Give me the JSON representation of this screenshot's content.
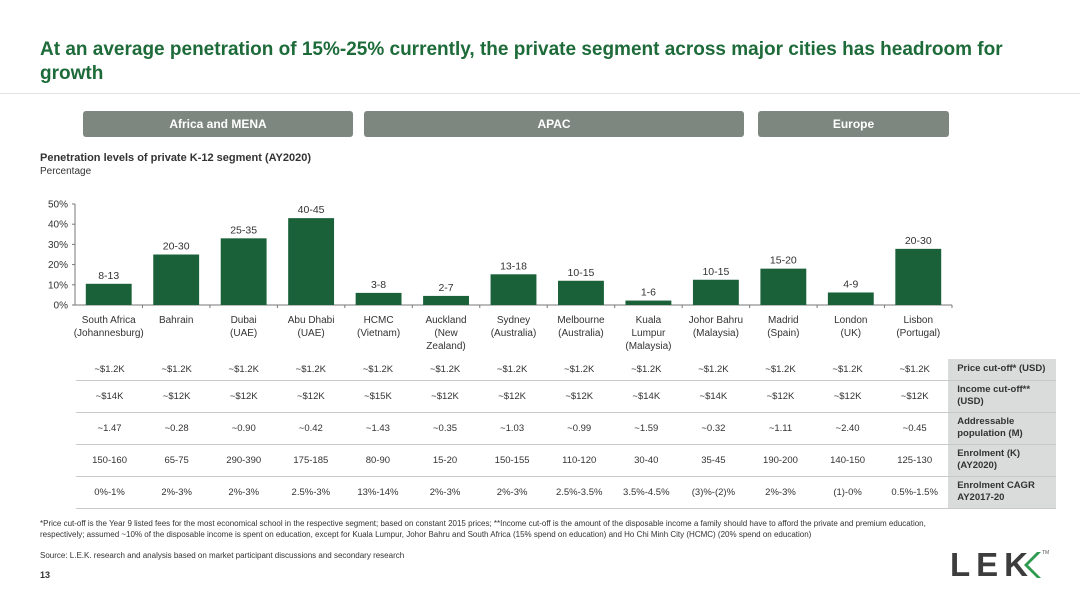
{
  "title": "At an average penetration of 15%-25% currently, the private segment across major cities has headroom for growth",
  "regions": [
    "Africa and MENA",
    "APAC",
    "Europe"
  ],
  "chart_header": {
    "title": "Penetration levels of private K-12 segment (AY2020)",
    "subtitle": "Percentage"
  },
  "chart_data": {
    "type": "bar",
    "title": "Penetration levels of private K-12 segment (AY2020)",
    "ylabel": "Percentage",
    "ylim": [
      0,
      50
    ],
    "yticks": [
      "0%",
      "10%",
      "20%",
      "30%",
      "40%",
      "50%"
    ],
    "categories": [
      [
        "South Africa",
        "(Johannesburg)"
      ],
      [
        "Bahrain"
      ],
      [
        "Dubai",
        "(UAE)"
      ],
      [
        "Abu Dhabi",
        "(UAE)"
      ],
      [
        "HCMC",
        "(Vietnam)"
      ],
      [
        "Auckland",
        "(New",
        "Zealand)"
      ],
      [
        "Sydney",
        "(Australia)"
      ],
      [
        "Melbourne",
        "(Australia)"
      ],
      [
        "Kuala",
        "Lumpur",
        "(Malaysia)"
      ],
      [
        "Johor Bahru",
        "(Malaysia)"
      ],
      [
        "Madrid",
        "(Spain)"
      ],
      [
        "London",
        "(UK)"
      ],
      [
        "Lisbon",
        "(Portugal)"
      ]
    ],
    "values": [
      10.5,
      25,
      33,
      43,
      6,
      4.5,
      15.2,
      12,
      2.2,
      12.5,
      18,
      6.2,
      27.8
    ],
    "data_labels": [
      "8-13",
      "20-30",
      "25-35",
      "40-45",
      "3-8",
      "2-7",
      "13-18",
      "10-15",
      "1-6",
      "10-15",
      "15-20",
      "4-9",
      "20-30"
    ],
    "bar_color": "#1a6139"
  },
  "table": {
    "rows": [
      {
        "label": "Price cut-off* (USD)",
        "values": [
          "~$1.2K",
          "~$1.2K",
          "~$1.2K",
          "~$1.2K",
          "~$1.2K",
          "~$1.2K",
          "~$1.2K",
          "~$1.2K",
          "~$1.2K",
          "~$1.2K",
          "~$1.2K",
          "~$1.2K",
          "~$1.2K"
        ]
      },
      {
        "label": "Income cut-off** (USD)",
        "values": [
          "~$14K",
          "~$12K",
          "~$12K",
          "~$12K",
          "~$15K",
          "~$12K",
          "~$12K",
          "~$12K",
          "~$14K",
          "~$14K",
          "~$12K",
          "~$12K",
          "~$12K"
        ]
      },
      {
        "label": "Addressable population (M)",
        "values": [
          "~1.47",
          "~0.28",
          "~0.90",
          "~0.42",
          "~1.43",
          "~0.35",
          "~1.03",
          "~0.99",
          "~1.59",
          "~0.32",
          "~1.11",
          "~2.40",
          "~0.45"
        ]
      },
      {
        "label": "Enrolment (K) (AY2020)",
        "values": [
          "150-160",
          "65-75",
          "290-390",
          "175-185",
          "80-90",
          "15-20",
          "150-155",
          "110-120",
          "30-40",
          "35-45",
          "190-200",
          "140-150",
          "125-130"
        ]
      },
      {
        "label": "Enrolment CAGR AY2017-20",
        "values": [
          "0%-1%",
          "2%-3%",
          "2%-3%",
          "2.5%-3%",
          "13%-14%",
          "2%-3%",
          "2%-3%",
          "2.5%-3.5%",
          "3.5%-4.5%",
          "(3)%-(2)%",
          "2%-3%",
          "(1)-0%",
          "0.5%-1.5%"
        ]
      }
    ]
  },
  "footnote": "*Price cut-off is the Year 9 listed fees for the most economical school in the respective segment; based on constant 2015 prices; **Income cut-off is the amount of the disposable income a family should have to afford the private and premium education, respectively; assumed ~10% of the disposable income is spent on education, except for Kuala Lumpur, Johor Bahru and South Africa (15% spend on education) and Ho Chi Minh City (HCMC) (20% spend on education)",
  "source": "Source: L.E.K. research and analysis based on market participant discussions and secondary research",
  "page_number": "13",
  "logo": {
    "text": "LEK",
    "tm": "TM",
    "accent_color": "#2e9b4f"
  }
}
